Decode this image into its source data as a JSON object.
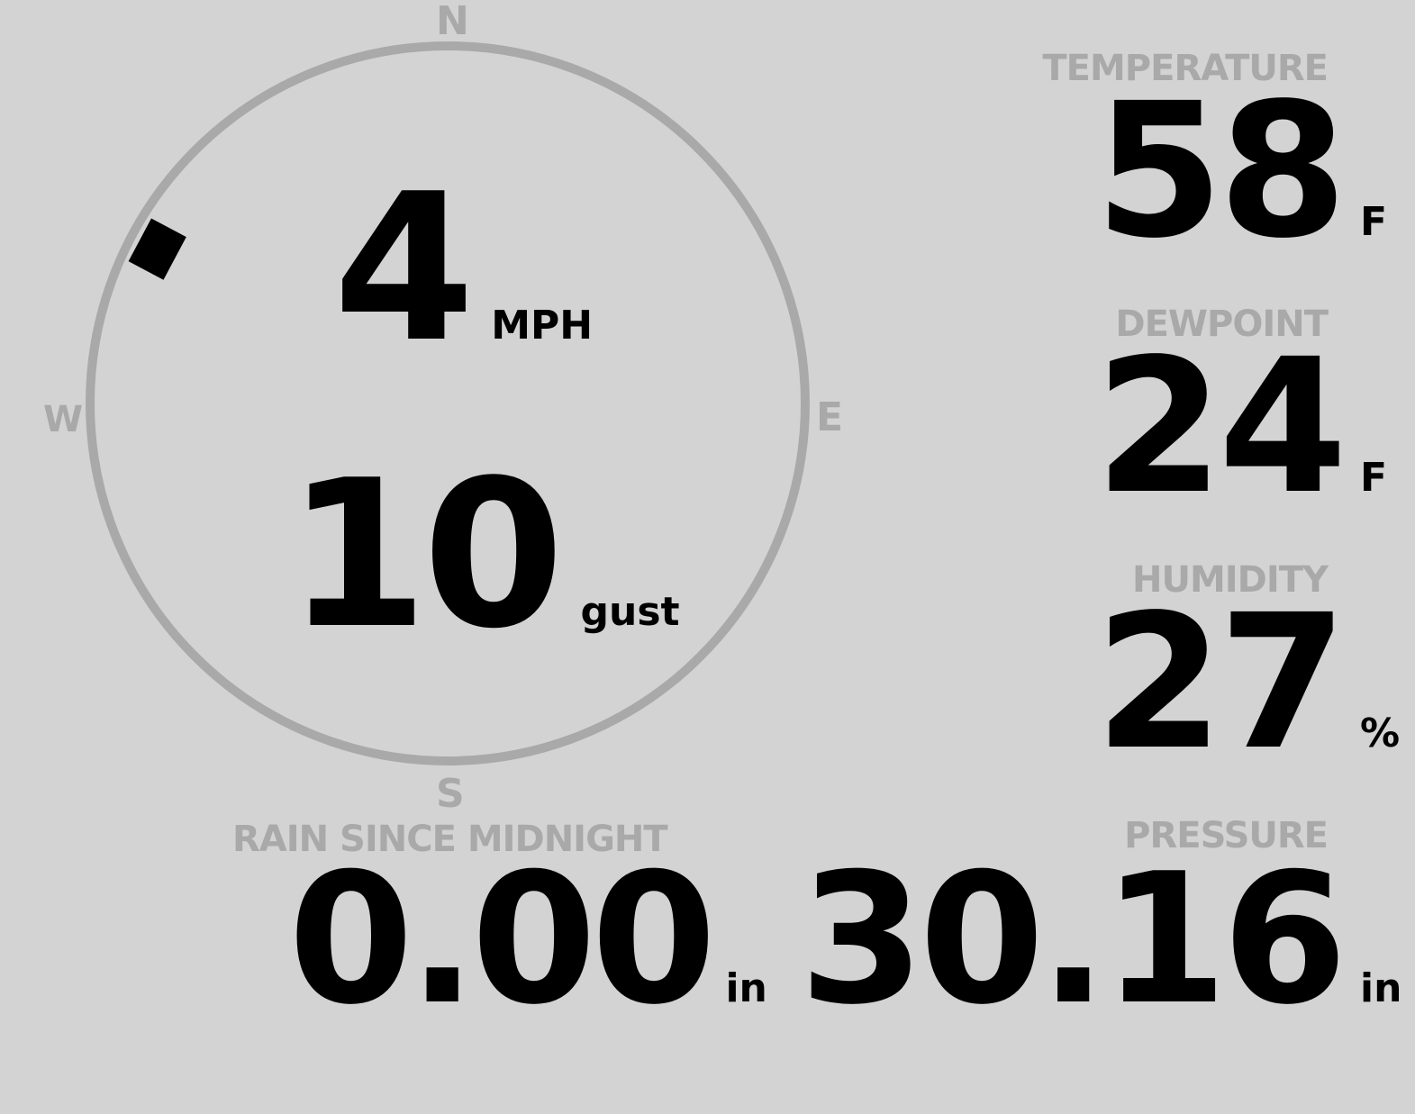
{
  "compass": {
    "north": "N",
    "south": "S",
    "east": "E",
    "west": "W",
    "wind_direction_deg": 298
  },
  "wind": {
    "speed": "4",
    "speed_unit": "MPH",
    "gust": "10",
    "gust_unit": "gust"
  },
  "temperature": {
    "label": "TEMPERATURE",
    "value": "58",
    "unit": "F"
  },
  "dewpoint": {
    "label": "DEWPOINT",
    "value": "24",
    "unit": "F"
  },
  "humidity": {
    "label": "HUMIDITY",
    "value": "27",
    "unit": "%"
  },
  "rain": {
    "label": "RAIN SINCE MIDNIGHT",
    "value": "0.00",
    "unit": "in"
  },
  "pressure": {
    "label": "PRESSURE",
    "value": "30.16",
    "unit": "in"
  },
  "colors": {
    "background": "#d3d3d3",
    "label": "#a9a9a9",
    "value": "#000000"
  }
}
